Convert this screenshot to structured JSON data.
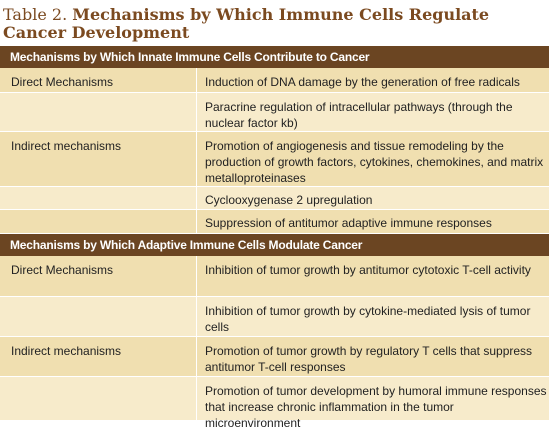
{
  "table": {
    "number": "Table 2.",
    "name": "Mechanisms by Which Immune Cells Regulate Cancer Development"
  },
  "sections": [
    {
      "header": "Mechanisms by Which Innate Immune Cells Contribute to Cancer",
      "rows": [
        {
          "left": "Direct Mechanisms",
          "right": "Induction of DNA damage by the generation of free radicals"
        },
        {
          "left": "",
          "right": "Paracrine regulation of intracellular pathways (through the nuclear factor kb)"
        },
        {
          "left": "Indirect mechanisms",
          "right": "Promotion of angiogenesis and tissue remodeling by the production of growth factors, cytokines, chemokines, and matrix metalloproteinases"
        },
        {
          "left": "",
          "right": "Cyclooxygenase 2 upregulation"
        },
        {
          "left": "",
          "right": "Suppression of antitumor adaptive immune responses"
        }
      ]
    },
    {
      "header": "Mechanisms by Which Adaptive Immune Cells Modulate Cancer",
      "rows": [
        {
          "left": "Direct Mechanisms",
          "right": "Inhibition of tumor growth by antitumor cytotoxic T-cell activity"
        },
        {
          "left": "",
          "right": "Inhibition of tumor growth by cytokine-mediated lysis of tumor cells"
        },
        {
          "left": "Indirect mechanisms",
          "right": "Promotion of tumor growth by regulatory T cells that suppress antitumor T-cell responses"
        },
        {
          "left": "",
          "right": "Promotion of tumor development by humoral immune responses that increase chronic inflammation in the tumor microenvironment"
        }
      ]
    }
  ],
  "colors": {
    "title": "#7b4a20",
    "header_bg": "#6b4522",
    "row_a": "#f0dfb0",
    "row_b": "#f7ebcb"
  }
}
